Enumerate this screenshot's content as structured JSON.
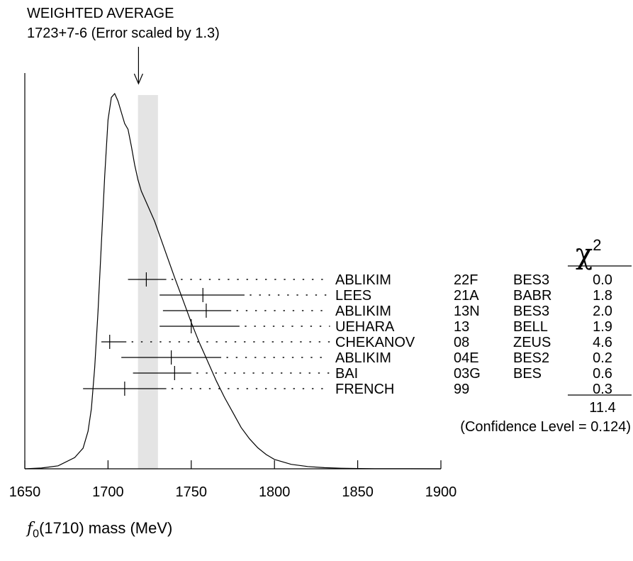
{
  "header": {
    "title": "WEIGHTED AVERAGE",
    "value": "1723+7-6 (Error scaled by 1.3)"
  },
  "chi_header": {
    "symbol": "χ",
    "power": "2"
  },
  "x_axis_title": {
    "symbol": "f",
    "subscript": "0",
    "rest": "(1710) mass (MeV)"
  },
  "chart_data": {
    "type": "ideogram",
    "xlim": [
      1650,
      1900
    ],
    "ticks": [
      1650,
      1700,
      1750,
      1800,
      1850,
      1900
    ],
    "tick_labels": [
      "1650",
      "1700",
      "1750",
      "1800",
      "1850",
      "1900"
    ],
    "weighted_average": {
      "value": 1723,
      "err_plus": 7,
      "err_minus": 6,
      "scale_factor": 1.3
    },
    "band": [
      1718,
      1730
    ],
    "measurements": [
      {
        "author": "ABLIKIM",
        "ref": "22F",
        "experiment": "BES3",
        "value": 1723,
        "err_lo": 11,
        "err_hi": 12,
        "chi2": "0.0"
      },
      {
        "author": "LEES",
        "ref": "21A",
        "experiment": "BABR",
        "value": 1757,
        "err_lo": 26,
        "err_hi": 25,
        "chi2": "1.8"
      },
      {
        "author": "ABLIKIM",
        "ref": "13N",
        "experiment": "BES3",
        "value": 1759,
        "err_lo": 26,
        "err_hi": 15,
        "chi2": "2.0"
      },
      {
        "author": "UEHARA",
        "ref": "13",
        "experiment": "BELL",
        "value": 1750,
        "err_lo": 19,
        "err_hi": 29,
        "chi2": "1.9"
      },
      {
        "author": "CHEKANOV",
        "ref": "08",
        "experiment": "ZEUS",
        "value": 1701,
        "err_lo": 5,
        "err_hi": 10,
        "chi2": "4.6"
      },
      {
        "author": "ABLIKIM",
        "ref": "04E",
        "experiment": "BES2",
        "value": 1738,
        "err_lo": 30,
        "err_hi": 30,
        "chi2": "0.2"
      },
      {
        "author": "BAI",
        "ref": "03G",
        "experiment": "BES",
        "value": 1740,
        "err_lo": 25,
        "err_hi": 10,
        "chi2": "0.6"
      },
      {
        "author": "FRENCH",
        "ref": "99",
        "experiment": "",
        "value": 1710,
        "err_lo": 25,
        "err_hi": 25,
        "chi2": "0.3"
      }
    ],
    "chi2_total": "11.4",
    "confidence_level": "(Confidence Level = 0.124)",
    "ideogram_curve": [
      [
        1650,
        0.0
      ],
      [
        1660,
        0.002
      ],
      [
        1670,
        0.008
      ],
      [
        1680,
        0.03
      ],
      [
        1685,
        0.055
      ],
      [
        1688,
        0.1
      ],
      [
        1690,
        0.16
      ],
      [
        1692,
        0.27
      ],
      [
        1694,
        0.42
      ],
      [
        1696,
        0.6
      ],
      [
        1698,
        0.78
      ],
      [
        1700,
        0.93
      ],
      [
        1702,
        0.99
      ],
      [
        1704,
        1.0
      ],
      [
        1706,
        0.98
      ],
      [
        1708,
        0.95
      ],
      [
        1710,
        0.92
      ],
      [
        1712,
        0.905
      ],
      [
        1714,
        0.86
      ],
      [
        1716,
        0.81
      ],
      [
        1718,
        0.77
      ],
      [
        1720,
        0.74
      ],
      [
        1722,
        0.72
      ],
      [
        1724,
        0.7
      ],
      [
        1726,
        0.68
      ],
      [
        1728,
        0.66
      ],
      [
        1730,
        0.635
      ],
      [
        1732,
        0.61
      ],
      [
        1736,
        0.56
      ],
      [
        1740,
        0.51
      ],
      [
        1745,
        0.45
      ],
      [
        1750,
        0.39
      ],
      [
        1755,
        0.335
      ],
      [
        1760,
        0.285
      ],
      [
        1765,
        0.235
      ],
      [
        1770,
        0.19
      ],
      [
        1775,
        0.15
      ],
      [
        1780,
        0.11
      ],
      [
        1785,
        0.08
      ],
      [
        1790,
        0.056
      ],
      [
        1795,
        0.038
      ],
      [
        1800,
        0.025
      ],
      [
        1810,
        0.012
      ],
      [
        1820,
        0.006
      ],
      [
        1830,
        0.003
      ],
      [
        1840,
        0.0015
      ],
      [
        1850,
        0.0008
      ],
      [
        1860,
        0.0004
      ],
      [
        1870,
        0.0002
      ],
      [
        1880,
        0.0001
      ],
      [
        1900,
        0.0
      ]
    ]
  }
}
